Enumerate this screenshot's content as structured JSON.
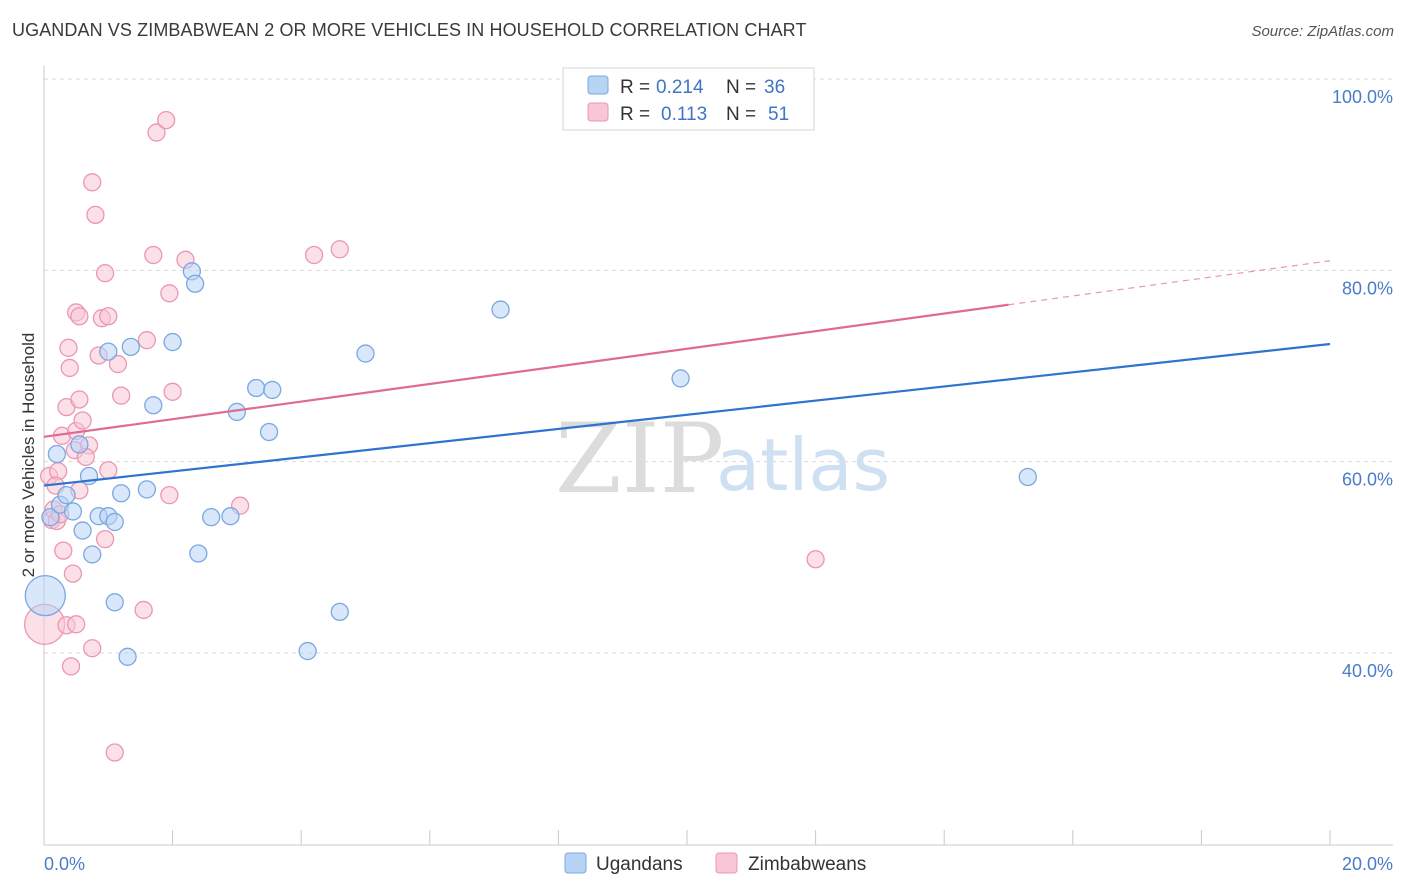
{
  "title": "UGANDAN VS ZIMBABWEAN 2 OR MORE VEHICLES IN HOUSEHOLD CORRELATION CHART",
  "source": "Source: ZipAtlas.com",
  "watermark": {
    "part1": "ZIP",
    "part2": "atlas"
  },
  "colors": {
    "blue_fill": "#b8d4f5",
    "blue_stroke": "#7aa8e0",
    "blue_line": "#2f72d0",
    "pink_fill": "#f8c6d6",
    "pink_stroke": "#ec96b2",
    "pink_line": "#e06a92",
    "grid": "#d9d9d9",
    "axis_text": "#4a7cc9"
  },
  "legend": {
    "rows": [
      {
        "r_label": "R =",
        "r_value": "0.214",
        "n_label": "N =",
        "n_value": "36"
      },
      {
        "r_label": "R =",
        "r_value": "0.113",
        "n_label": "N =",
        "n_value": "51"
      }
    ]
  },
  "chart_data": {
    "type": "scatter",
    "title": "UGANDAN VS ZIMBABWEAN 2 OR MORE VEHICLES IN HOUSEHOLD CORRELATION CHART",
    "xlabel": "",
    "ylabel": "2 or more Vehicles in Household",
    "xlim": [
      0,
      20
    ],
    "ylim": [
      20,
      100
    ],
    "x_tick_labels": [
      "0.0%",
      "20.0%"
    ],
    "y_tick_labels": [
      "100.0%",
      "80.0%",
      "60.0%",
      "40.0%"
    ],
    "y_tick_values": [
      100,
      80,
      60,
      40
    ],
    "legend_position": "top-center",
    "series": [
      {
        "name": "Ugandans",
        "trend": {
          "x": [
            0,
            20
          ],
          "y": [
            57.5,
            72.3
          ],
          "solid_until": 20
        },
        "points": [
          {
            "x": 0.02,
            "y": 46.0,
            "big": true
          },
          {
            "x": 0.1,
            "y": 54.2
          },
          {
            "x": 0.2,
            "y": 60.8
          },
          {
            "x": 0.25,
            "y": 55.5
          },
          {
            "x": 0.35,
            "y": 56.5
          },
          {
            "x": 0.45,
            "y": 54.8
          },
          {
            "x": 0.55,
            "y": 61.8
          },
          {
            "x": 0.6,
            "y": 52.8
          },
          {
            "x": 0.7,
            "y": 58.5
          },
          {
            "x": 0.75,
            "y": 50.3
          },
          {
            "x": 0.85,
            "y": 54.3
          },
          {
            "x": 1.0,
            "y": 54.3
          },
          {
            "x": 1.0,
            "y": 71.5
          },
          {
            "x": 1.1,
            "y": 53.7
          },
          {
            "x": 1.1,
            "y": 45.3
          },
          {
            "x": 1.2,
            "y": 56.7
          },
          {
            "x": 1.3,
            "y": 39.6
          },
          {
            "x": 1.35,
            "y": 72.0
          },
          {
            "x": 1.6,
            "y": 57.1
          },
          {
            "x": 1.7,
            "y": 65.9
          },
          {
            "x": 2.0,
            "y": 72.5
          },
          {
            "x": 2.3,
            "y": 79.9
          },
          {
            "x": 2.35,
            "y": 78.6
          },
          {
            "x": 2.4,
            "y": 50.4
          },
          {
            "x": 2.6,
            "y": 54.2
          },
          {
            "x": 2.9,
            "y": 54.3
          },
          {
            "x": 3.0,
            "y": 65.2
          },
          {
            "x": 3.3,
            "y": 67.7
          },
          {
            "x": 3.5,
            "y": 63.1
          },
          {
            "x": 3.55,
            "y": 67.5
          },
          {
            "x": 4.1,
            "y": 40.2
          },
          {
            "x": 4.6,
            "y": 44.3
          },
          {
            "x": 5.0,
            "y": 71.3
          },
          {
            "x": 7.1,
            "y": 75.9
          },
          {
            "x": 9.9,
            "y": 68.7
          },
          {
            "x": 15.3,
            "y": 58.4
          }
        ]
      },
      {
        "name": "Zimbabweans",
        "trend": {
          "x": [
            0,
            20
          ],
          "y": [
            62.6,
            81.0
          ],
          "solid_until": 15.0
        },
        "points": [
          {
            "x": 0.01,
            "y": 43.0,
            "big": true
          },
          {
            "x": 0.08,
            "y": 58.5
          },
          {
            "x": 0.12,
            "y": 53.9
          },
          {
            "x": 0.15,
            "y": 55.0
          },
          {
            "x": 0.2,
            "y": 53.8
          },
          {
            "x": 0.22,
            "y": 59.0
          },
          {
            "x": 0.28,
            "y": 62.7
          },
          {
            "x": 0.3,
            "y": 50.7
          },
          {
            "x": 0.35,
            "y": 42.9
          },
          {
            "x": 0.35,
            "y": 65.7
          },
          {
            "x": 0.38,
            "y": 71.9
          },
          {
            "x": 0.4,
            "y": 69.8
          },
          {
            "x": 0.42,
            "y": 38.6
          },
          {
            "x": 0.45,
            "y": 48.3
          },
          {
            "x": 0.48,
            "y": 61.2
          },
          {
            "x": 0.5,
            "y": 63.2
          },
          {
            "x": 0.5,
            "y": 43.0
          },
          {
            "x": 0.5,
            "y": 75.6
          },
          {
            "x": 0.55,
            "y": 75.2
          },
          {
            "x": 0.55,
            "y": 66.5
          },
          {
            "x": 0.6,
            "y": 64.3
          },
          {
            "x": 0.7,
            "y": 61.7
          },
          {
            "x": 0.75,
            "y": 40.5
          },
          {
            "x": 0.75,
            "y": 89.2
          },
          {
            "x": 0.8,
            "y": 85.8
          },
          {
            "x": 0.85,
            "y": 71.1
          },
          {
            "x": 0.9,
            "y": 75.0
          },
          {
            "x": 0.95,
            "y": 79.7
          },
          {
            "x": 0.95,
            "y": 51.9
          },
          {
            "x": 1.0,
            "y": 59.1
          },
          {
            "x": 1.0,
            "y": 75.2
          },
          {
            "x": 1.1,
            "y": 29.6
          },
          {
            "x": 1.15,
            "y": 70.2
          },
          {
            "x": 1.2,
            "y": 66.9
          },
          {
            "x": 1.55,
            "y": 44.5
          },
          {
            "x": 1.6,
            "y": 72.7
          },
          {
            "x": 1.7,
            "y": 81.6
          },
          {
            "x": 1.75,
            "y": 94.4
          },
          {
            "x": 1.9,
            "y": 95.7
          },
          {
            "x": 1.95,
            "y": 56.5
          },
          {
            "x": 1.95,
            "y": 77.6
          },
          {
            "x": 2.0,
            "y": 67.3
          },
          {
            "x": 2.2,
            "y": 81.1
          },
          {
            "x": 3.05,
            "y": 55.4
          },
          {
            "x": 4.2,
            "y": 81.6
          },
          {
            "x": 4.6,
            "y": 82.2
          },
          {
            "x": 12.0,
            "y": 49.8
          },
          {
            "x": 0.18,
            "y": 57.5
          },
          {
            "x": 0.65,
            "y": 60.5
          },
          {
            "x": 0.25,
            "y": 54.5
          },
          {
            "x": 0.55,
            "y": 57.0
          }
        ]
      }
    ]
  }
}
